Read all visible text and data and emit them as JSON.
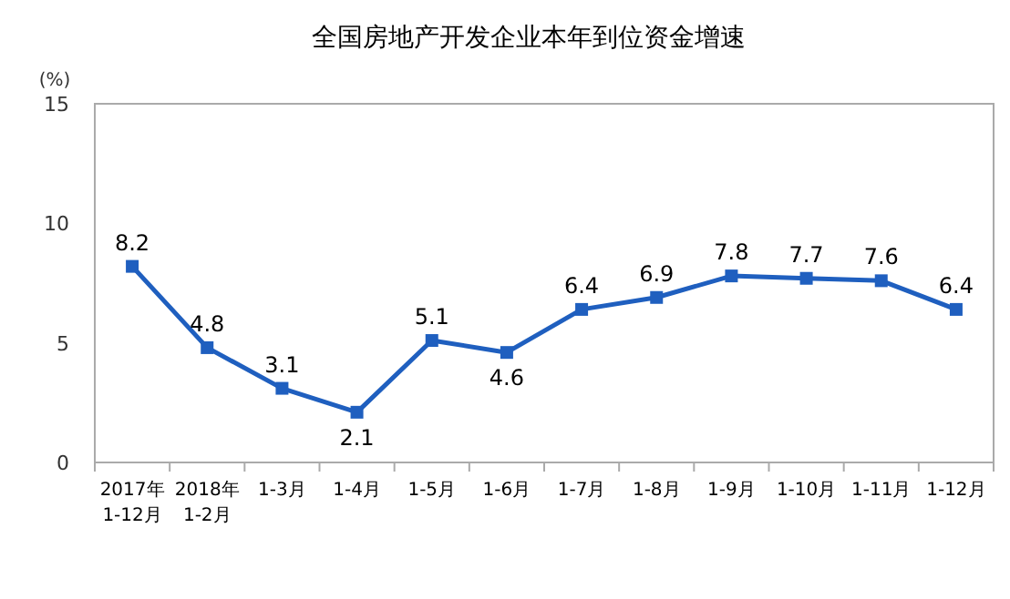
{
  "chart_data": {
    "type": "line",
    "title": "全国房地产开发企业本年到位资金增速",
    "ylabel": "(%)",
    "categories": [
      "2017年\n1-12月",
      "2018年\n1-2月",
      "1-3月",
      "1-4月",
      "1-5月",
      "1-6月",
      "1-7月",
      "1-8月",
      "1-9月",
      "1-10月",
      "1-11月",
      "1-12月"
    ],
    "series": [
      {
        "color": "#1f5fbf",
        "values": [
          8.2,
          4.8,
          3.1,
          2.1,
          5.1,
          4.6,
          6.4,
          6.9,
          7.8,
          7.7,
          7.6,
          6.4
        ]
      }
    ],
    "ylim": [
      0,
      15
    ],
    "yticks": [
      0,
      5,
      10,
      15
    ],
    "grid": false,
    "marker": "square",
    "data_labels": true
  }
}
